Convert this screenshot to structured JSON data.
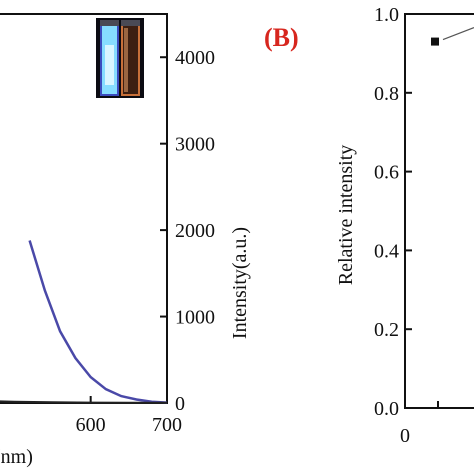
{
  "chart_data": [
    {
      "type": "line",
      "panel": "A",
      "xlabel": "(nm)",
      "ylabel_right": "Intensity(a.u.)",
      "xlim": [
        455,
        700
      ],
      "xticks": [
        "600",
        "700"
      ],
      "ylim_right": [
        0,
        4500
      ],
      "yticks_right": [
        "0",
        "1000",
        "2000",
        "3000",
        "4000"
      ],
      "series": [
        {
          "color": "#4a49a8",
          "x": [
            520,
            540,
            560,
            580,
            600,
            620,
            640,
            660,
            680,
            700
          ],
          "y": [
            1880,
            1300,
            830,
            520,
            300,
            160,
            80,
            40,
            15,
            5
          ]
        },
        {
          "color": "#222222",
          "x": [
            455,
            500,
            550,
            600,
            650,
            700
          ],
          "y": [
            25,
            15,
            8,
            5,
            3,
            2
          ]
        }
      ],
      "inset": {
        "description_icon": "vial-photo-icon",
        "colors": [
          "#6fd3ff",
          "#b5602a"
        ]
      }
    },
    {
      "type": "scatter",
      "panel": "B",
      "title": "(B)",
      "ylabel": "Relative intensity",
      "ylim": [
        0.0,
        1.0
      ],
      "yticks": [
        "0.0",
        "0.2",
        "0.4",
        "0.6",
        "0.8",
        "1.0"
      ],
      "xticks": [
        "0"
      ],
      "series": [
        {
          "marker": "square",
          "x": [
            1
          ],
          "y": [
            0.93
          ]
        }
      ]
    }
  ]
}
